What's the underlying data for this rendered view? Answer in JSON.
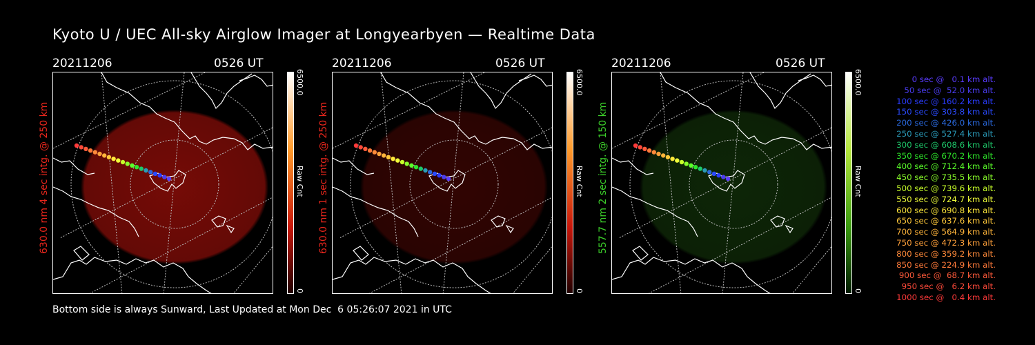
{
  "title": "Kyoto U / UEC All-sky Airglow Imager at Longyearbyen — Realtime Data",
  "panels": [
    {
      "date": "20211206",
      "time": "0526 UT",
      "channel_label": "630.0 nm 4 sec intg. @ 250 km",
      "channel_color": "#e8261c",
      "glow_color": "#8a0d08",
      "glow_opacity": 0.85,
      "cbar_max": "6500.0",
      "cbar_unit": "Raw Cnt",
      "cbar_min": "0",
      "cbar_colors": [
        "#ffffff",
        "#ff9a2a",
        "#c8160a",
        "#200000"
      ]
    },
    {
      "date": "20211206",
      "time": "0526 UT",
      "channel_label": "630.0 nm 1 sec intg. @ 250 km",
      "channel_color": "#e8261c",
      "glow_color": "#3a0503",
      "glow_opacity": 0.85,
      "cbar_max": "6500.0",
      "cbar_unit": "Raw Cnt",
      "cbar_min": "0",
      "cbar_colors": [
        "#ffffff",
        "#ff9a2a",
        "#c8160a",
        "#200000"
      ]
    },
    {
      "date": "20211206",
      "time": "0526 UT",
      "channel_label": "557.7 nm 2 sec intg. @ 150 km",
      "channel_color": "#3ccf2a",
      "glow_color": "#0f2a08",
      "glow_opacity": 0.9,
      "cbar_max": "6500.0",
      "cbar_unit": "Raw Cnt",
      "cbar_min": "0",
      "cbar_colors": [
        "#ffffff",
        "#b4e63c",
        "#3a9a10",
        "#001a00"
      ]
    }
  ],
  "legend": [
    {
      "text": "0 sec @   0.1 km alt.",
      "color": "#5a3cff"
    },
    {
      "text": "50 sec @  52.0 km alt.",
      "color": "#4a3cf0"
    },
    {
      "text": "100 sec @ 160.2 km alt.",
      "color": "#2a3cff"
    },
    {
      "text": "150 sec @ 303.8 km alt.",
      "color": "#2a4aff"
    },
    {
      "text": "200 sec @ 426.0 km alt.",
      "color": "#2a6ae0"
    },
    {
      "text": "250 sec @ 527.4 km alt.",
      "color": "#2a9ab8"
    },
    {
      "text": "300 sec @ 608.6 km alt.",
      "color": "#1ec86a"
    },
    {
      "text": "350 sec @ 670.2 km alt.",
      "color": "#2ee62a"
    },
    {
      "text": "400 sec @ 712.4 km alt.",
      "color": "#5aff2a"
    },
    {
      "text": "450 sec @ 735.5 km alt.",
      "color": "#8aff2a"
    },
    {
      "text": "500 sec @ 739.6 km alt.",
      "color": "#c8ff2a"
    },
    {
      "text": "550 sec @ 724.7 km alt.",
      "color": "#f0ff3a"
    },
    {
      "text": "600 sec @ 690.8 km alt.",
      "color": "#ffe83a"
    },
    {
      "text": "650 sec @ 637.6 km alt.",
      "color": "#ffc83a"
    },
    {
      "text": "700 sec @ 564.9 km alt.",
      "color": "#ffb43a"
    },
    {
      "text": "750 sec @ 472.3 km alt.",
      "color": "#ffa03a"
    },
    {
      "text": "800 sec @ 359.2 km alt.",
      "color": "#ff8a3a"
    },
    {
      "text": "850 sec @ 224.9 km alt.",
      "color": "#ff7a3a"
    },
    {
      "text": "900 sec @  68.7 km alt.",
      "color": "#ff5a3a"
    },
    {
      "text": "950 sec @   6.2 km alt.",
      "color": "#ff4a3a"
    },
    {
      "text": "1000 sec @   0.4 km alt.",
      "color": "#ff3a3a"
    }
  ],
  "footer": "Bottom side is always Sunward, Last Updated at Mon Dec  6 05:26:07 2021 in UTC"
}
